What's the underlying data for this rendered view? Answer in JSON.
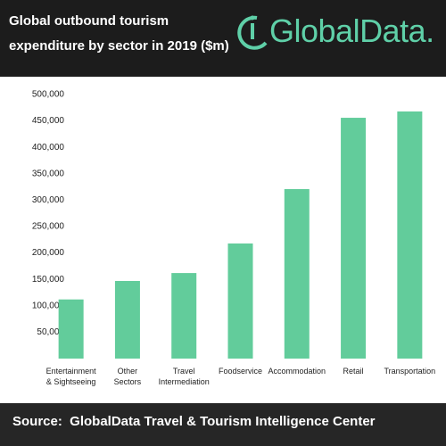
{
  "chart_data": {
    "type": "bar",
    "title": "Global outbound tourism\nexpenditure by sector in 2019 ($m)",
    "logo": "GlobalData.",
    "source": "Source:  GlobalData Travel & Tourism Intelligence Center",
    "categories": [
      "Entertainment\n& Sightseeing",
      "Other\nSectors",
      "Travel\nIntermediation",
      "Foodservice",
      "Accommodation",
      "Retail",
      "Transportation"
    ],
    "values": [
      112000,
      147000,
      162000,
      218000,
      321000,
      456000,
      468000
    ],
    "color": "#62cc9b",
    "ylim": [
      0,
      500000
    ],
    "yticks": [
      {
        "value": 50000,
        "label": "50,000"
      },
      {
        "value": 100000,
        "label": "100,000"
      },
      {
        "value": 150000,
        "label": "150,000"
      },
      {
        "value": 200000,
        "label": "200,000"
      },
      {
        "value": 250000,
        "label": "250,000"
      },
      {
        "value": 300000,
        "label": "300,000"
      },
      {
        "value": 350000,
        "label": "350,000"
      },
      {
        "value": 400000,
        "label": "400,000"
      },
      {
        "value": 450000,
        "label": "450,000"
      },
      {
        "value": 500000,
        "label": "500,000"
      }
    ],
    "grid": false
  }
}
